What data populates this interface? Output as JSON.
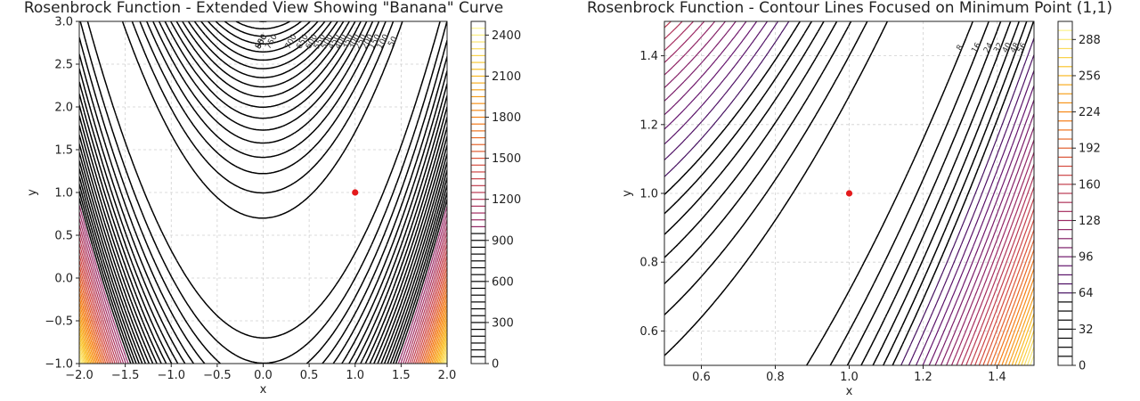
{
  "chart_data": [
    {
      "type": "contour",
      "title": "Rosenbrock Function - Extended View Showing \"Banana\" Curve",
      "xlabel": "x",
      "ylabel": "y",
      "xlim": [
        -2.0,
        2.0
      ],
      "ylim": [
        -1.0,
        3.0
      ],
      "xticks": [
        "−2.0",
        "−1.5",
        "−1.0",
        "−0.5",
        "0.0",
        "0.5",
        "1.0",
        "1.5",
        "2.0"
      ],
      "yticks": [
        "−1.0",
        "−0.5",
        "0.0",
        "0.5",
        "1.0",
        "1.5",
        "2.0",
        "2.5",
        "3.0"
      ],
      "grid": true,
      "function": "(1 - x)^2 + 100 (y - x^2)^2",
      "levels_black": [
        50,
        100,
        150,
        200,
        250,
        300,
        350,
        400,
        450,
        500,
        550,
        600,
        650,
        700,
        750,
        800,
        850,
        900,
        950
      ],
      "levels_colored_step": 50,
      "levels_max": 2500,
      "contour_labels": [
        "50",
        "100",
        "150",
        "200",
        "250",
        "300",
        "350",
        "400",
        "450",
        "500",
        "550",
        "600",
        "650",
        "700",
        "750",
        "800",
        "850",
        "900",
        "950"
      ],
      "colorbar_ticks": [
        "0",
        "300",
        "600",
        "900",
        "1200",
        "1500",
        "1800",
        "2100",
        "2400"
      ],
      "colorbar_range": [
        0,
        2500
      ],
      "colormap": "inferno",
      "minimum_point": {
        "x": 1.0,
        "y": 1.0,
        "color": "#e41a1c"
      }
    },
    {
      "type": "contour",
      "title": "Rosenbrock Function - Contour Lines Focused on Minimum Point (1,1)",
      "xlabel": "x",
      "ylabel": "y",
      "xlim": [
        0.5,
        1.5
      ],
      "ylim": [
        0.5,
        1.5
      ],
      "xticks": [
        "0.6",
        "0.8",
        "1.0",
        "1.2",
        "1.4"
      ],
      "yticks": [
        "0.6",
        "0.8",
        "1.0",
        "1.2",
        "1.4"
      ],
      "grid": true,
      "function": "(1 - x)^2 + 100 (y - x^2)^2",
      "levels_black": [
        8,
        16,
        24,
        32,
        40,
        48,
        56
      ],
      "levels_colored_step": 8,
      "levels_max": 300,
      "contour_labels": [
        "8",
        "16",
        "24",
        "32",
        "40",
        "48",
        "56",
        "64",
        "72",
        "80",
        "88",
        "96",
        "104",
        "112",
        "120",
        "128",
        "136",
        "144"
      ],
      "colorbar_ticks": [
        "0",
        "32",
        "64",
        "96",
        "128",
        "160",
        "192",
        "224",
        "256",
        "288"
      ],
      "colorbar_range": [
        0,
        304
      ],
      "colormap": "inferno",
      "minimum_point": {
        "x": 1.0,
        "y": 1.0,
        "color": "#e41a1c"
      }
    }
  ]
}
